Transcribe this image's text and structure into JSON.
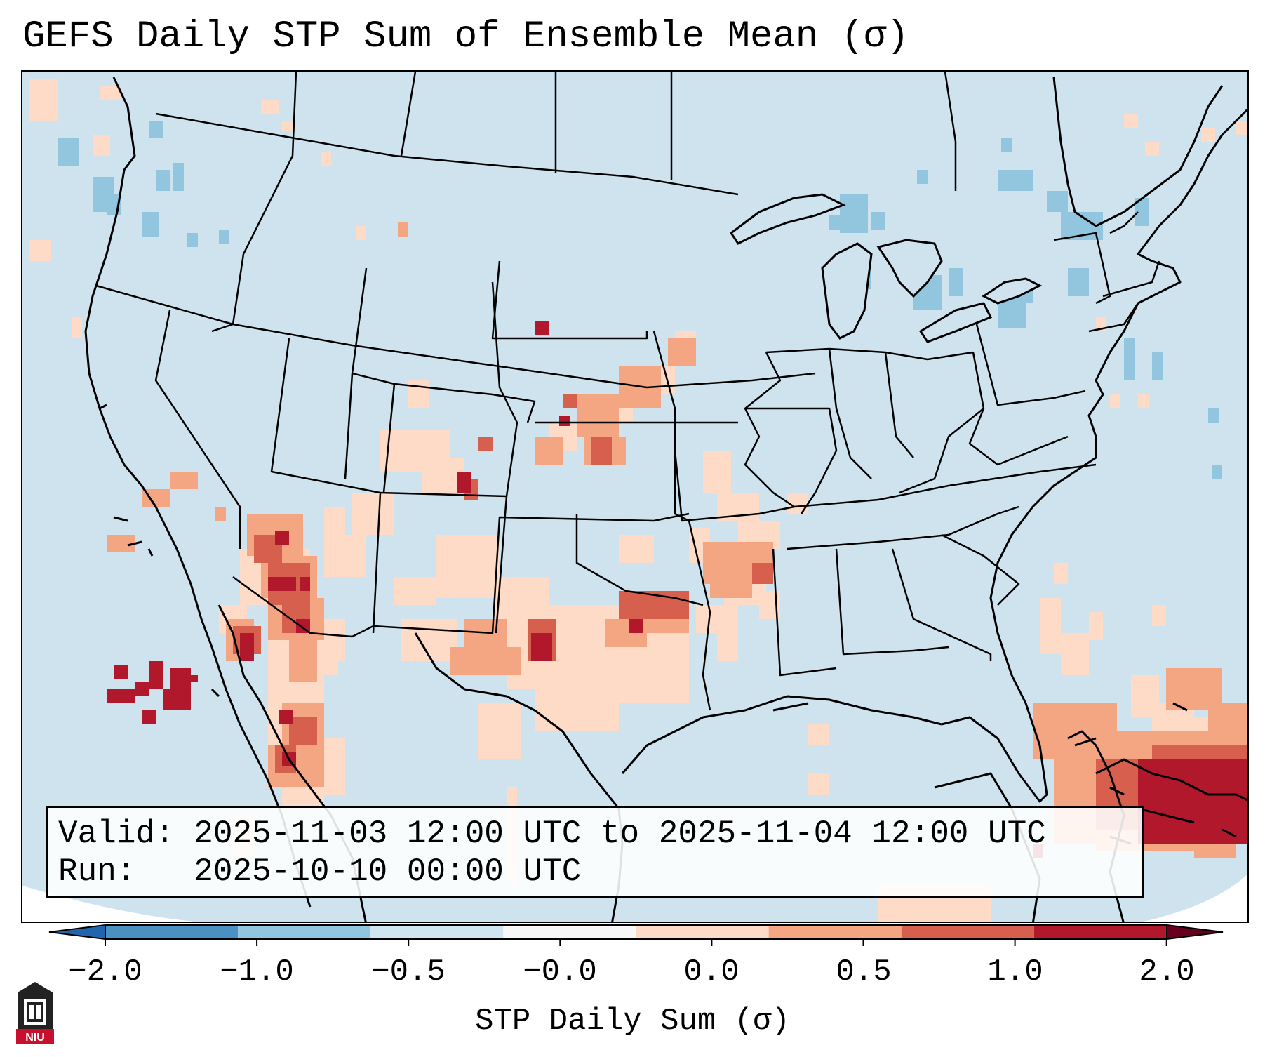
{
  "title": "GEFS Daily STP Sum of Ensemble Mean (σ)",
  "info": {
    "valid_line": "Valid: 2025-11-03 12:00 UTC to 2025-11-04 12:00 UTC",
    "run_line": "Run:   2025-10-10 00:00 UTC"
  },
  "colorbar": {
    "label": "STP Daily Sum (σ)",
    "ticks": [
      "−2.0",
      "−1.0",
      "−0.5",
      "−0.0",
      "0.0",
      "0.5",
      "1.0",
      "2.0"
    ],
    "colors": [
      "#4a90c2",
      "#92c5de",
      "#d1e5f0",
      "#f7f7f7",
      "#fddbc7",
      "#f4a582",
      "#d6604d",
      "#b2182b"
    ],
    "extend": "both"
  },
  "map": {
    "region": "Contiguous United States",
    "ocean_color": "#cfe3ef",
    "anomaly_colors": {
      "strong_positive": "#b2182b",
      "positive": "#d6604d",
      "moderate_positive": "#f4a582",
      "weak_positive": "#fddbc7",
      "weak_negative": "#92c5de"
    },
    "hotspots": [
      {
        "area": "Southwest / Arizona",
        "level": "strong_positive"
      },
      {
        "area": "Baja California",
        "level": "strong_positive"
      },
      {
        "area": "Pacific off Baja",
        "level": "strong_positive"
      },
      {
        "area": "Texas / Oklahoma",
        "level": "positive"
      },
      {
        "area": "Kansas / Nebraska",
        "level": "positive"
      },
      {
        "area": "Bahamas / Caribbean",
        "level": "strong_positive"
      },
      {
        "area": "Pacific Northwest",
        "level": "weak_negative"
      },
      {
        "area": "Great Lakes",
        "level": "weak_negative"
      }
    ]
  },
  "logo": {
    "text": "NIU"
  }
}
